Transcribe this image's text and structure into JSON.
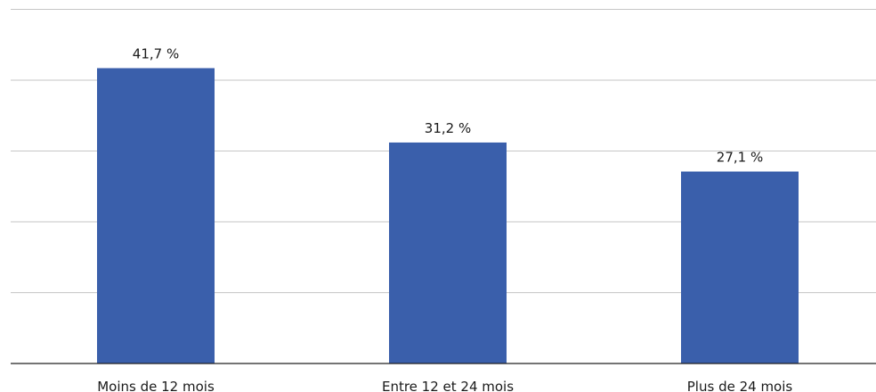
{
  "chart_data": {
    "type": "bar",
    "categories": [
      "Moins de 12 mois",
      "Entre 12 et 24 mois",
      "Plus de 24 mois"
    ],
    "values": [
      41.7,
      31.2,
      27.1
    ],
    "data_labels": [
      "41,7 %",
      "31,2 %",
      "27,1 %"
    ],
    "title": "",
    "xlabel": "",
    "ylabel": "",
    "ylim": [
      0,
      50
    ],
    "grid": true,
    "y_tick_labels_shown": false,
    "bar_color": "#3a5fab"
  }
}
